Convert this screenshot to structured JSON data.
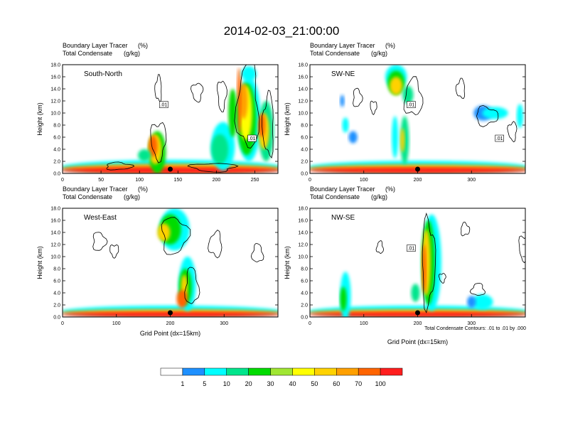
{
  "figure_title": "2014-02-03_21:00:00",
  "colorbar": {
    "levels": [
      "1",
      "5",
      "10",
      "20",
      "30",
      "40",
      "50",
      "60",
      "70",
      "100"
    ],
    "colors": [
      "#ffffff",
      "#1e90ff",
      "#00ffff",
      "#00e58c",
      "#00dc00",
      "#a0e632",
      "#ffff00",
      "#ffd200",
      "#ffa000",
      "#ff6400",
      "#ff1e1e"
    ]
  },
  "condensate_note": "Total Condensate Contours: .01 to .01 by .000",
  "chart_data": [
    {
      "type": "heatmap",
      "name": "South-North",
      "label": "South-North",
      "title_line1": "Boundary Layer Tracer",
      "title_line1_units": "(%)",
      "title_line2": "Total Condensate",
      "title_line2_units": "(g/kg)",
      "ylabel": "Height (km)",
      "xlabel": "",
      "xlim": [
        0,
        280
      ],
      "ylim": [
        0,
        18
      ],
      "xticks": [
        "0",
        "50",
        "100",
        "150",
        "200",
        "250"
      ],
      "yticks": [
        "0.0",
        "2.0",
        "4.0",
        "6.0",
        "8.0",
        "10.0",
        "12.0",
        "14.0",
        "16.0",
        "18.0"
      ],
      "contour_labels": [
        ".01",
        ".01"
      ],
      "surface_marker_x": 140,
      "blobs": [
        {
          "x": 1,
          "y": 1.0,
          "w": 99,
          "h": 2.5,
          "c": "#00ffff"
        },
        {
          "x": 1,
          "y": 0.8,
          "w": 99,
          "h": 1.6,
          "c": "#ffa000"
        },
        {
          "x": 1,
          "y": 0.5,
          "w": 99,
          "h": 1.0,
          "c": "#ff1e1e"
        },
        {
          "x": 40,
          "y": 3.5,
          "w": 8,
          "h": 7,
          "c": "#00dc00"
        },
        {
          "x": 40,
          "y": 4.0,
          "w": 6,
          "h": 5,
          "c": "#ffd200"
        },
        {
          "x": 40,
          "y": 4.5,
          "w": 4,
          "h": 3.5,
          "c": "#ff6400"
        },
        {
          "x": 35,
          "y": 3.0,
          "w": 6,
          "h": 2,
          "c": "#00e58c"
        },
        {
          "x": 69,
          "y": 4.5,
          "w": 11,
          "h": 8,
          "c": "#00ffff"
        },
        {
          "x": 69,
          "y": 4.0,
          "w": 8,
          "h": 5,
          "c": "#00e58c"
        },
        {
          "x": 81,
          "y": 9.0,
          "w": 11,
          "h": 14,
          "c": "#00ffff"
        },
        {
          "x": 81,
          "y": 9.0,
          "w": 9,
          "h": 12,
          "c": "#00dc00"
        },
        {
          "x": 82,
          "y": 10.0,
          "w": 6,
          "h": 9,
          "c": "#ffff00"
        },
        {
          "x": 82,
          "y": 12.0,
          "w": 4,
          "h": 6,
          "c": "#ffa000"
        },
        {
          "x": 81,
          "y": 12.0,
          "w": 2,
          "h": 11,
          "c": "#ff6400"
        },
        {
          "x": 83,
          "y": 16.5,
          "w": 7,
          "h": 2.5,
          "c": "#00ffff"
        },
        {
          "x": 77,
          "y": 10.0,
          "w": 4,
          "h": 8,
          "c": "#00dc00"
        },
        {
          "x": 91,
          "y": 7.0,
          "w": 7,
          "h": 10,
          "c": "#00e58c"
        },
        {
          "x": 91,
          "y": 7.0,
          "w": 5,
          "h": 6,
          "c": "#ffd200"
        },
        {
          "x": 91,
          "y": 8.0,
          "w": 3,
          "h": 4,
          "c": "#ff6400"
        }
      ],
      "contours": [
        {
          "x": 43,
          "y": 14.0,
          "w": 3,
          "h": 4
        },
        {
          "x": 60,
          "y": 13.5,
          "w": 5,
          "h": 3
        },
        {
          "x": 72,
          "y": 13.0,
          "w": 4,
          "h": 5
        },
        {
          "x": 81,
          "y": 11.0,
          "w": 10,
          "h": 14
        },
        {
          "x": 93,
          "y": 8.0,
          "w": 5,
          "h": 10
        },
        {
          "x": 41,
          "y": 5.5,
          "w": 7,
          "h": 6
        },
        {
          "x": 60,
          "y": 1.0,
          "w": 20,
          "h": 1.4
        },
        {
          "x": 20,
          "y": 1.2,
          "w": 12,
          "h": 1.2
        }
      ]
    },
    {
      "type": "heatmap",
      "name": "SW-NE",
      "label": "SW-NE",
      "title_line1": "Boundary Layer Tracer",
      "title_line1_units": "(%)",
      "title_line2": "Total Condensate",
      "title_line2_units": "(g/kg)",
      "ylabel": "Height (km)",
      "xlabel": "",
      "xlim": [
        0,
        400
      ],
      "ylim": [
        0,
        18
      ],
      "xticks": [
        "0",
        "100",
        "200",
        "300"
      ],
      "yticks": [
        "0.0",
        "2.0",
        "4.0",
        "6.0",
        "8.0",
        "10.0",
        "12.0",
        "14.0",
        "16.0",
        "18.0"
      ],
      "contour_labels": [
        ".01",
        ".01"
      ],
      "surface_marker_x": 200,
      "blobs": [
        {
          "x": 1,
          "y": 1.0,
          "w": 99,
          "h": 2.2,
          "c": "#00ffff"
        },
        {
          "x": 1,
          "y": 0.8,
          "w": 99,
          "h": 1.4,
          "c": "#ffa000"
        },
        {
          "x": 1,
          "y": 0.5,
          "w": 99,
          "h": 0.9,
          "c": "#ff1e1e"
        },
        {
          "x": 35,
          "y": 16.0,
          "w": 10,
          "h": 4,
          "c": "#00ffff"
        },
        {
          "x": 36,
          "y": 15.0,
          "w": 8,
          "h": 4,
          "c": "#00dc00"
        },
        {
          "x": 37,
          "y": 14.5,
          "w": 6,
          "h": 3,
          "c": "#ffd200"
        },
        {
          "x": 43,
          "y": 13.0,
          "w": 5,
          "h": 3,
          "c": "#00e58c"
        },
        {
          "x": 38,
          "y": 6.0,
          "w": 3,
          "h": 7,
          "c": "#00ffff"
        },
        {
          "x": 42,
          "y": 5.5,
          "w": 4,
          "h": 8,
          "c": "#00e58c"
        },
        {
          "x": 42,
          "y": 5.5,
          "w": 2,
          "h": 4,
          "c": "#ffd200"
        },
        {
          "x": 15,
          "y": 8.0,
          "w": 3,
          "h": 2.5,
          "c": "#00ffff"
        },
        {
          "x": 18,
          "y": 6.0,
          "w": 4,
          "h": 2,
          "c": "#1e90ff"
        },
        {
          "x": 14,
          "y": 12.0,
          "w": 2,
          "h": 2,
          "c": "#1e90ff"
        },
        {
          "x": 76,
          "y": 10.0,
          "w": 9,
          "h": 2.5,
          "c": "#1e90ff"
        },
        {
          "x": 80,
          "y": 10.0,
          "w": 12,
          "h": 2,
          "c": "#00ffff"
        },
        {
          "x": 96,
          "y": 9.5,
          "w": 3,
          "h": 4,
          "c": "#00ffff"
        }
      ],
      "contours": [
        {
          "x": 20,
          "y": 12.5,
          "w": 4,
          "h": 3
        },
        {
          "x": 44,
          "y": 12.5,
          "w": 8,
          "h": 6
        },
        {
          "x": 28,
          "y": 11.0,
          "w": 3,
          "h": 2
        },
        {
          "x": 77,
          "y": 9.5,
          "w": 10,
          "h": 3
        },
        {
          "x": 92,
          "y": 7.0,
          "w": 4,
          "h": 3
        },
        {
          "x": 68,
          "y": 14.0,
          "w": 4,
          "h": 3
        }
      ]
    },
    {
      "type": "heatmap",
      "name": "West-East",
      "label": "West-East",
      "title_line1": "Boundary Layer Tracer",
      "title_line1_units": "(%)",
      "title_line2": "Total Condensate",
      "title_line2_units": "(g/kg)",
      "ylabel": "Height (km)",
      "xlabel": "Grid Point (dx=15km)",
      "xlim": [
        0,
        400
      ],
      "ylim": [
        0,
        18
      ],
      "xticks": [
        "0",
        "100",
        "200",
        "300"
      ],
      "yticks": [
        "0.0",
        "2.0",
        "4.0",
        "6.0",
        "8.0",
        "10.0",
        "12.0",
        "14.0",
        "16.0",
        "18.0"
      ],
      "contour_labels": [],
      "surface_marker_x": 200,
      "blobs": [
        {
          "x": 1,
          "y": 0.9,
          "w": 99,
          "h": 2.0,
          "c": "#00ffff"
        },
        {
          "x": 1,
          "y": 0.7,
          "w": 99,
          "h": 1.2,
          "c": "#ffa000"
        },
        {
          "x": 1,
          "y": 0.4,
          "w": 99,
          "h": 0.8,
          "c": "#ff1e1e"
        },
        {
          "x": 45,
          "y": 14.5,
          "w": 14,
          "h": 7,
          "c": "#00ffff"
        },
        {
          "x": 45,
          "y": 14.5,
          "w": 10,
          "h": 5,
          "c": "#00dc00"
        },
        {
          "x": 44,
          "y": 14.0,
          "w": 6,
          "h": 3,
          "c": "#ffd200"
        },
        {
          "x": 54,
          "y": 5.5,
          "w": 8,
          "h": 9,
          "c": "#00ffff"
        },
        {
          "x": 54,
          "y": 5.0,
          "w": 6,
          "h": 6,
          "c": "#00dc00"
        },
        {
          "x": 55,
          "y": 5.0,
          "w": 3,
          "h": 4,
          "c": "#ffd200"
        },
        {
          "x": 53,
          "y": 3.0,
          "w": 5,
          "h": 3,
          "c": "#ff6400"
        }
      ],
      "contours": [
        {
          "x": 14,
          "y": 12.5,
          "w": 6,
          "h": 3
        },
        {
          "x": 22,
          "y": 11.0,
          "w": 4,
          "h": 2
        },
        {
          "x": 46,
          "y": 13.5,
          "w": 12,
          "h": 6
        },
        {
          "x": 68,
          "y": 12.0,
          "w": 6,
          "h": 4
        },
        {
          "x": 88,
          "y": 10.5,
          "w": 5,
          "h": 3
        },
        {
          "x": 57,
          "y": 5.0,
          "w": 6,
          "h": 6
        }
      ]
    },
    {
      "type": "heatmap",
      "name": "NW-SE",
      "label": "NW-SE",
      "title_line1": "Boundary Layer Tracer",
      "title_line1_units": "(%)",
      "title_line2": "Total Condensate",
      "title_line2_units": "(g/kg)",
      "ylabel": "Height (km)",
      "xlabel": "Grid Point (dx=15km)",
      "xlim": [
        0,
        400
      ],
      "ylim": [
        0,
        18
      ],
      "xticks": [
        "0",
        "100",
        "200",
        "300"
      ],
      "yticks": [
        "0.0",
        "2.0",
        "4.0",
        "6.0",
        "8.0",
        "10.0",
        "12.0",
        "14.0",
        "16.0",
        "18.0"
      ],
      "contour_labels": [
        ".01"
      ],
      "surface_marker_x": 200,
      "blobs": [
        {
          "x": 1,
          "y": 0.9,
          "w": 99,
          "h": 2.0,
          "c": "#00ffff"
        },
        {
          "x": 1,
          "y": 0.7,
          "w": 99,
          "h": 1.2,
          "c": "#ffa000"
        },
        {
          "x": 1,
          "y": 0.4,
          "w": 99,
          "h": 0.8,
          "c": "#ff1e1e"
        },
        {
          "x": 14,
          "y": 3.5,
          "w": 5,
          "h": 8,
          "c": "#00ffff"
        },
        {
          "x": 14,
          "y": 3.0,
          "w": 3,
          "h": 4,
          "c": "#00dc00"
        },
        {
          "x": 52,
          "y": 9.0,
          "w": 9,
          "h": 16,
          "c": "#00ffff"
        },
        {
          "x": 52,
          "y": 9.0,
          "w": 6,
          "h": 14,
          "c": "#00dc00"
        },
        {
          "x": 52,
          "y": 9.0,
          "w": 4,
          "h": 11,
          "c": "#ffd200"
        },
        {
          "x": 52,
          "y": 8.0,
          "w": 2,
          "h": 8,
          "c": "#ff6400"
        },
        {
          "x": 47,
          "y": 4.0,
          "w": 4,
          "h": 3,
          "c": "#00e58c"
        },
        {
          "x": 75,
          "y": 2.5,
          "w": 10,
          "h": 2.5,
          "c": "#00ffff"
        },
        {
          "x": 73,
          "y": 2.5,
          "w": 4,
          "h": 2,
          "c": "#1e90ff"
        }
      ],
      "contours": [
        {
          "x": 52,
          "y": 9.0,
          "w": 6,
          "h": 14
        },
        {
          "x": 31,
          "y": 11.5,
          "w": 3,
          "h": 2
        },
        {
          "x": 70,
          "y": 14.5,
          "w": 4,
          "h": 2
        },
        {
          "x": 97,
          "y": 11.5,
          "w": 5,
          "h": 4
        },
        {
          "x": 75,
          "y": 4.5,
          "w": 6,
          "h": 2
        },
        {
          "x": 60,
          "y": 6.5,
          "w": 3,
          "h": 1.5
        }
      ]
    }
  ]
}
